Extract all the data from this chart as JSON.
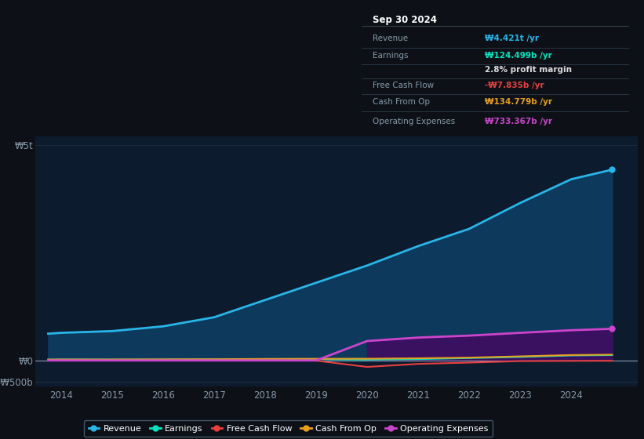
{
  "background_color": "#0d1117",
  "plot_bg_color": "#0d1b2e",
  "years": [
    2013.75,
    2014,
    2015,
    2016,
    2017,
    2018,
    2019,
    2020,
    2021,
    2022,
    2023,
    2024,
    2024.8
  ],
  "revenue": [
    620,
    640,
    680,
    790,
    1000,
    1400,
    1800,
    2200,
    2650,
    3050,
    3650,
    4200,
    4421
  ],
  "earnings": [
    20,
    22,
    20,
    22,
    25,
    28,
    30,
    20,
    30,
    55,
    80,
    115,
    124
  ],
  "free_cash_flow": [
    5,
    5,
    5,
    5,
    8,
    8,
    -5,
    -150,
    -80,
    -50,
    -15,
    -10,
    -8
  ],
  "cash_from_op": [
    20,
    22,
    22,
    25,
    28,
    35,
    38,
    40,
    50,
    65,
    95,
    125,
    135
  ],
  "operating_expenses": [
    0,
    0,
    0,
    0,
    0,
    0,
    0,
    450,
    530,
    575,
    640,
    700,
    733
  ],
  "revenue_color": "#29b5e8",
  "earnings_color": "#00e5c0",
  "fcf_color": "#e84040",
  "cashop_color": "#e8a020",
  "opex_color": "#cc44cc",
  "revenue_fill_color": "#0d3a5c",
  "opex_fill_color": "#3a1060",
  "xticks": [
    2014,
    2015,
    2016,
    2017,
    2018,
    2019,
    2020,
    2021,
    2022,
    2023,
    2024
  ],
  "xlim": [
    2013.5,
    2025.3
  ],
  "ylim": [
    -600,
    5200
  ],
  "yticks": [
    -500,
    0,
    5000
  ],
  "ytick_labels": [
    "-₩500b",
    "₩0",
    "₩5t"
  ],
  "table_title": "Sep 30 2024",
  "table_rows": [
    {
      "label": "Revenue",
      "value": "₩4.421t /yr",
      "value_color": "#29b5e8"
    },
    {
      "label": "Earnings",
      "value": "₩124.499b /yr",
      "value_color": "#00e5c0"
    },
    {
      "label": "",
      "value": "2.8% profit margin",
      "value_color": "#dddddd"
    },
    {
      "label": "Free Cash Flow",
      "value": "-₩7.835b /yr",
      "value_color": "#e84040"
    },
    {
      "label": "Cash From Op",
      "value": "₩134.779b /yr",
      "value_color": "#e8a020"
    },
    {
      "label": "Operating Expenses",
      "value": "₩733.367b /yr",
      "value_color": "#cc44cc"
    }
  ],
  "legend_labels": [
    "Revenue",
    "Earnings",
    "Free Cash Flow",
    "Cash From Op",
    "Operating Expenses"
  ]
}
